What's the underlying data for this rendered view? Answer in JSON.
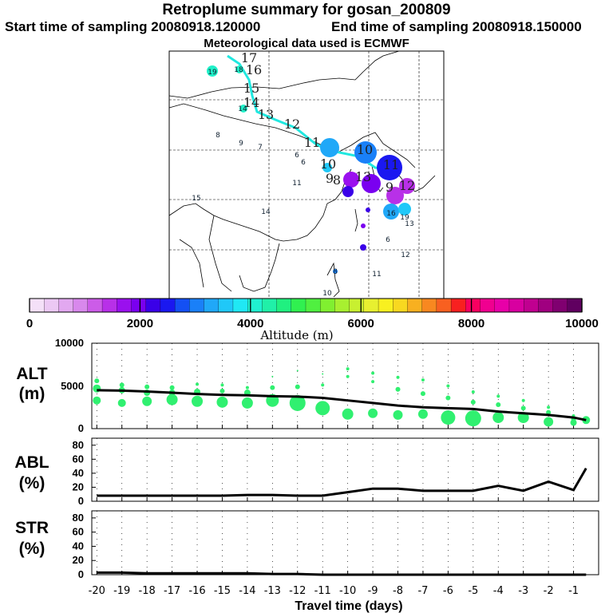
{
  "header": {
    "title": "Retroplume summary for gosan_200809",
    "start_label": "Start time of sampling 20080918.120000",
    "end_label": "End time of sampling 20080918.150000",
    "met_label": "Meteorological data used is ECMWF"
  },
  "colorbar": {
    "label": "Altitude (m)",
    "ticks": [
      "0",
      "2000",
      "4000",
      "6000",
      "8000",
      "10000"
    ],
    "colors": [
      "#f4e0f8",
      "#ecc8f4",
      "#e2a8f0",
      "#d888ec",
      "#cc5ce8",
      "#b830e8",
      "#9a10ee",
      "#7a00f0",
      "#3a00e8",
      "#1a18f0",
      "#1450f4",
      "#1a80f8",
      "#20a8f8",
      "#20c8f8",
      "#20e8f4",
      "#20f0d0",
      "#20f0a8",
      "#20f080",
      "#30f050",
      "#50f040",
      "#80f030",
      "#a8f030",
      "#c8f030",
      "#e8f030",
      "#f8f020",
      "#f8d820",
      "#f8b020",
      "#f88820",
      "#f86020",
      "#f82020",
      "#f80060",
      "#f00090",
      "#e800a8",
      "#d800a0",
      "#c00090",
      "#a00080",
      "#800070",
      "#600060"
    ]
  },
  "map": {
    "trajectory_labels": [
      {
        "t": "17",
        "c": "#202020"
      },
      {
        "t": "16",
        "c": "#202020"
      },
      {
        "t": "15",
        "c": "#202020"
      },
      {
        "t": "14",
        "c": "#202020"
      },
      {
        "t": "13",
        "c": "#202020"
      },
      {
        "t": "12",
        "c": "#202020"
      },
      {
        "t": "11",
        "c": "#202020"
      },
      {
        "t": "10",
        "c": "#202020"
      },
      {
        "t": "9",
        "c": "#202020"
      },
      {
        "t": "8",
        "c": "#202020"
      },
      {
        "t": "11",
        "c": "#202020"
      },
      {
        "t": "10",
        "c": "#202020"
      },
      {
        "t": "9",
        "c": "#202020"
      },
      {
        "t": "12",
        "c": "#202020"
      },
      {
        "t": "13",
        "c": "#202020"
      }
    ],
    "dot_labels": [
      "19",
      "18",
      "14",
      "8",
      "9",
      "7",
      "6",
      "6",
      "11",
      "15",
      "14",
      "16",
      "19",
      "13",
      "6",
      "12",
      "11",
      "8",
      "10"
    ]
  },
  "chart_data": [
    {
      "type": "scatter",
      "title": "ALT (m)",
      "ylabel": "ALT\n(m)",
      "ylim": [
        0,
        10000
      ],
      "yticks": [
        "10000",
        "5000",
        "0"
      ],
      "x": [
        -20,
        -19,
        -18,
        -17,
        -16,
        -15,
        -14,
        -13,
        -12,
        -11,
        -10,
        -9,
        -8,
        -7,
        -6,
        -5,
        -4,
        -3,
        -2,
        -1,
        -0.5
      ],
      "median_line": [
        4500,
        4450,
        4350,
        4200,
        4050,
        3950,
        3900,
        3800,
        3750,
        3600,
        3300,
        3000,
        2700,
        2500,
        2400,
        2300,
        2000,
        1800,
        1600,
        1300,
        1000
      ]
    },
    {
      "type": "line",
      "title": "ABL (%)",
      "ylabel": "ABL\n(%)",
      "ylim": [
        0,
        90
      ],
      "yticks": [
        "80",
        "60",
        "40",
        "20",
        "0"
      ],
      "x": [
        -20,
        -19,
        -18,
        -17,
        -16,
        -15,
        -14,
        -13,
        -12,
        -11,
        -10,
        -9,
        -8,
        -7,
        -6,
        -5,
        -4,
        -3,
        -2,
        -1,
        -0.5
      ],
      "values": [
        8,
        8,
        8,
        8,
        8,
        8,
        9,
        9,
        8,
        8,
        13,
        18,
        18,
        15,
        15,
        15,
        22,
        15,
        28,
        16,
        47
      ]
    },
    {
      "type": "line",
      "title": "STR (%)",
      "ylabel": "STR\n(%)",
      "ylim": [
        0,
        90
      ],
      "yticks": [
        "80",
        "60",
        "40",
        "20",
        "0"
      ],
      "x": [
        -20,
        -19,
        -18,
        -17,
        -16,
        -15,
        -14,
        -13,
        -12,
        -11,
        -10,
        -9,
        -8,
        -7,
        -6,
        -5,
        -4,
        -3,
        -2,
        -1,
        -0.5
      ],
      "values": [
        3,
        3,
        2,
        2,
        2,
        2,
        2,
        1,
        1,
        0,
        0,
        0,
        0,
        0,
        0,
        0,
        0,
        0,
        0,
        0,
        0
      ],
      "xlabel": "Travel time (days)",
      "xticks": [
        "-20",
        "-19",
        "-18",
        "-17",
        "-16",
        "-15",
        "-14",
        "-13",
        "-12",
        "-11",
        "-10",
        "-9",
        "-8",
        "-7",
        "-6",
        "-5",
        "-4",
        "-3",
        "-2",
        "-1"
      ]
    }
  ]
}
